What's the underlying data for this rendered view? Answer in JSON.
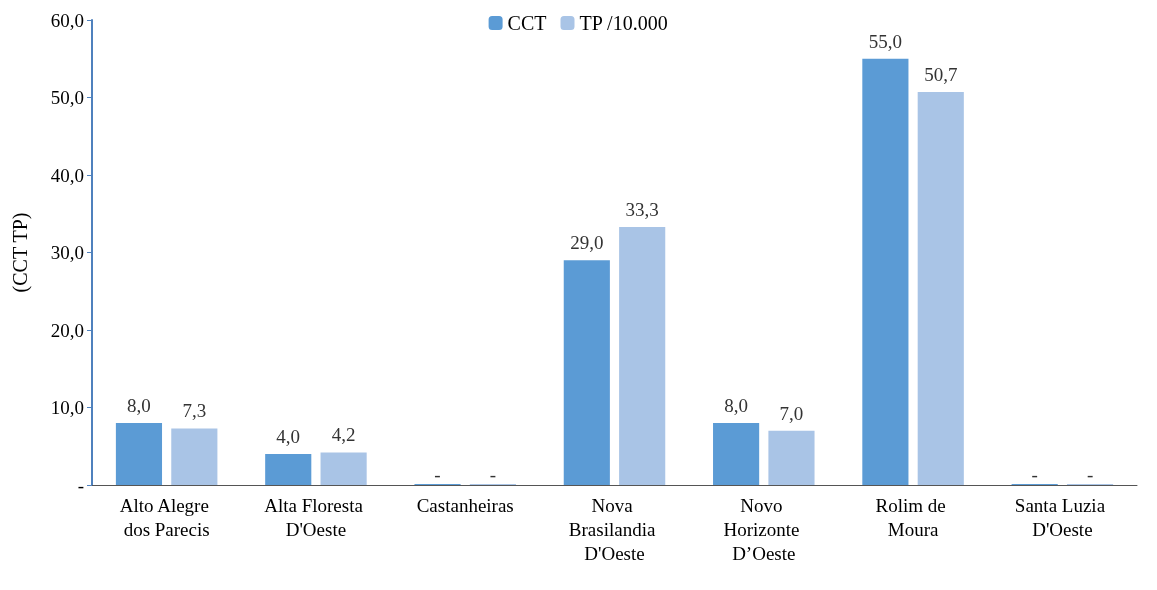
{
  "chart_data": {
    "type": "bar",
    "ylabel": "(CCT TP)",
    "categories": [
      "Alto Alegre dos Parecis",
      "Alta Floresta D'Oeste",
      "Castanheiras",
      "Nova Brasilandia D'Oeste",
      "Novo Horizonte D’Oeste",
      "Rolim de Moura",
      "Santa Luzia D'Oeste"
    ],
    "series": [
      {
        "name": "CCT",
        "color": "#5b9bd5",
        "values": [
          8.0,
          4.0,
          0,
          29.0,
          8.0,
          55.0,
          0
        ],
        "value_labels": [
          "8,0",
          "4,0",
          "-",
          "29,0",
          "8,0",
          "55,0",
          "-"
        ]
      },
      {
        "name": "TP /10.000",
        "color": "#a9c4e6",
        "values": [
          7.3,
          4.2,
          0,
          33.3,
          7.0,
          50.7,
          0
        ],
        "value_labels": [
          "7,3",
          "4,2",
          "-",
          "33,3",
          "7,0",
          "50,7",
          "-"
        ]
      }
    ],
    "ylim": [
      0,
      60
    ],
    "yticks": [
      {
        "value": 0,
        "label": "-"
      },
      {
        "value": 10,
        "label": "10,0"
      },
      {
        "value": 20,
        "label": "20,0"
      },
      {
        "value": 30,
        "label": "30,0"
      },
      {
        "value": 40,
        "label": "40,0"
      },
      {
        "value": 50,
        "label": "50,0"
      },
      {
        "value": 60,
        "label": "60,0"
      }
    ],
    "grid": false,
    "legend": "top"
  }
}
